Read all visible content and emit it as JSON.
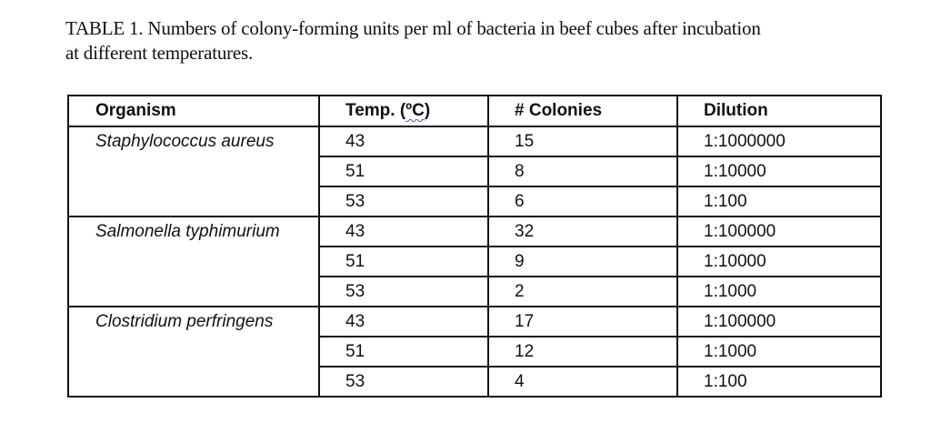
{
  "caption": {
    "line1": "TABLE 1. Numbers of colony-forming units per ml of bacteria in beef cubes after incubation",
    "line2": "at different temperatures."
  },
  "table": {
    "headers": {
      "organism": "Organism",
      "temp_prefix": "Temp. (",
      "temp_unit": "ºC",
      "temp_suffix": ")",
      "colonies": "# Colonies",
      "dilution": "Dilution"
    },
    "groups": [
      {
        "organism": "Staphylococcus aureus",
        "rows": [
          {
            "temp": "43",
            "colonies": "15",
            "dilution": "1:1000000"
          },
          {
            "temp": "51",
            "colonies": "8",
            "dilution": "1:10000"
          },
          {
            "temp": "53",
            "colonies": "6",
            "dilution": "1:100"
          }
        ]
      },
      {
        "organism": "Salmonella typhimurium",
        "rows": [
          {
            "temp": "43",
            "colonies": "32",
            "dilution": "1:100000"
          },
          {
            "temp": "51",
            "colonies": "9",
            "dilution": "1:10000"
          },
          {
            "temp": "53",
            "colonies": "2",
            "dilution": "1:1000"
          }
        ]
      },
      {
        "organism": "Clostridium perfringens",
        "rows": [
          {
            "temp": "43",
            "colonies": "17",
            "dilution": "1:100000"
          },
          {
            "temp": "51",
            "colonies": "12",
            "dilution": "1:1000"
          },
          {
            "temp": "53",
            "colonies": "4",
            "dilution": "1:100"
          }
        ]
      }
    ]
  }
}
